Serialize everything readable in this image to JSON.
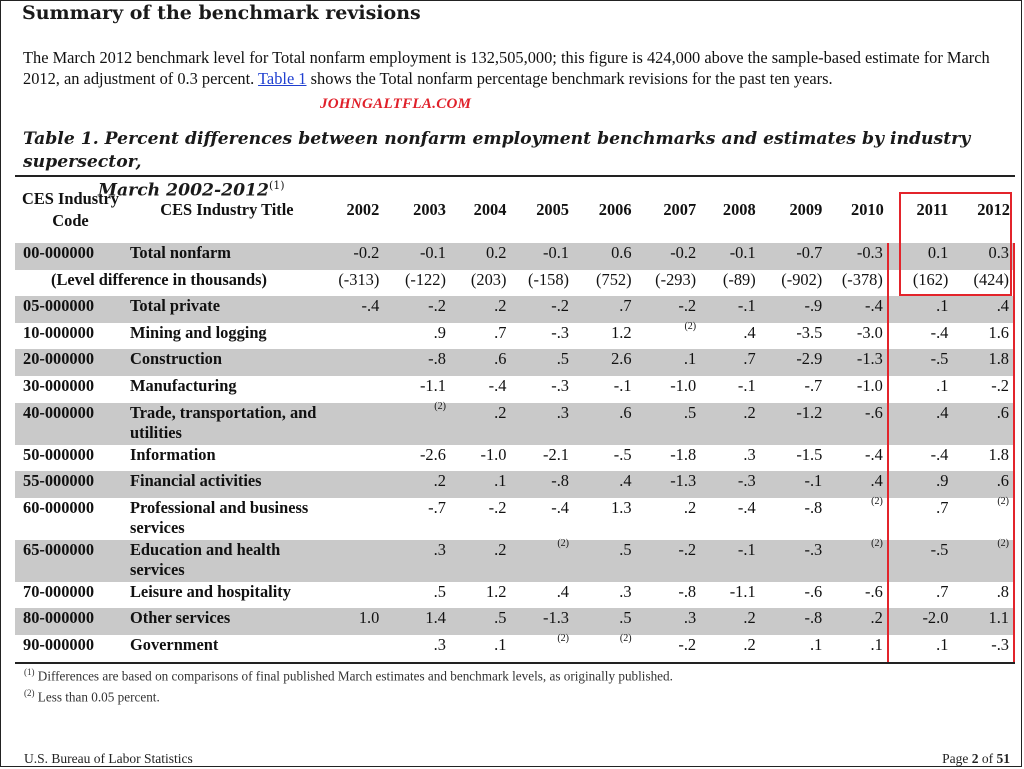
{
  "section_heading": "Summary of the benchmark revisions",
  "intro": {
    "text_before_link": "The March 2012 benchmark level for Total nonfarm employment is 132,505,000; this figure is 424,000 above the sample-based estimate for March 2012, an adjustment of 0.3 percent.",
    "link_text": "Table 1",
    "text_after_link": "shows the Total nonfarm percentage benchmark revisions for the past ten years."
  },
  "watermark": "JOHNGALTFLA.COM",
  "table": {
    "title_line1": "Table 1. Percent differences between nonfarm employment benchmarks and estimates by industry supersector,",
    "title_line2": "March 2002-2012",
    "title_note": "(1)",
    "header_code": "CES Industry Code",
    "header_title": "CES Industry Title",
    "years": [
      "2002",
      "2003",
      "2004",
      "2005",
      "2006",
      "2007",
      "2008",
      "2009",
      "2010",
      "2011",
      "2012"
    ],
    "total_row": {
      "code": "00-000000",
      "title": "Total nonfarm",
      "values": [
        "-0.2",
        "-0.1",
        "0.2",
        "-0.1",
        "0.6",
        "-0.2",
        "-0.1",
        "-0.7",
        "-0.3",
        "0.1",
        "0.3"
      ]
    },
    "level_row": {
      "label": "(Level difference in thousands)",
      "values": [
        "(-313)",
        "(-122)",
        "(203)",
        "(-158)",
        "(752)",
        "(-293)",
        "(-89)",
        "(-902)",
        "(-378)",
        "(162)",
        "(424)"
      ]
    },
    "rows": [
      {
        "code": "05-000000",
        "title": "Total private",
        "values": [
          "-.4",
          "-.2",
          ".2",
          "-.2",
          ".7",
          "-.2",
          "-.1",
          "-.9",
          "-.4",
          ".1",
          ".4"
        ]
      },
      {
        "code": "10-000000",
        "title": "Mining and logging",
        "values": [
          "",
          ".9",
          ".7",
          "-.3",
          "1.2",
          "(2)",
          ".4",
          "-3.5",
          "-3.0",
          "-.4",
          "1.6"
        ]
      },
      {
        "code": "20-000000",
        "title": "Construction",
        "values": [
          "",
          "-.8",
          ".6",
          ".5",
          "2.6",
          ".1",
          ".7",
          "-2.9",
          "-1.3",
          "-.5",
          "1.8"
        ]
      },
      {
        "code": "30-000000",
        "title": "Manufacturing",
        "values": [
          "",
          "-1.1",
          "-.4",
          "-.3",
          "-.1",
          "-1.0",
          "-.1",
          "-.7",
          "-1.0",
          ".1",
          "-.2"
        ]
      },
      {
        "code": "40-000000",
        "title": "Trade, transportation, and utilities",
        "values": [
          "",
          "(2)",
          ".2",
          ".3",
          ".6",
          ".5",
          ".2",
          "-1.2",
          "-.6",
          ".4",
          ".6"
        ]
      },
      {
        "code": "50-000000",
        "title": "Information",
        "values": [
          "",
          "-2.6",
          "-1.0",
          "-2.1",
          "-.5",
          "-1.8",
          ".3",
          "-1.5",
          "-.4",
          "-.4",
          "1.8"
        ]
      },
      {
        "code": "55-000000",
        "title": "Financial activities",
        "values": [
          "",
          ".2",
          ".1",
          "-.8",
          ".4",
          "-1.3",
          "-.3",
          "-.1",
          ".4",
          ".9",
          ".6"
        ]
      },
      {
        "code": "60-000000",
        "title": "Professional and business services",
        "values": [
          "",
          "-.7",
          "-.2",
          "-.4",
          "1.3",
          ".2",
          "-.4",
          "-.8",
          "(2)",
          ".7",
          "(2)"
        ]
      },
      {
        "code": "65-000000",
        "title": "Education and health services",
        "values": [
          "",
          ".3",
          ".2",
          "(2)",
          ".5",
          "-.2",
          "-.1",
          "-.3",
          "(2)",
          "-.5",
          "(2)"
        ]
      },
      {
        "code": "70-000000",
        "title": "Leisure and hospitality",
        "values": [
          "",
          ".5",
          "1.2",
          ".4",
          ".3",
          "-.8",
          "-1.1",
          "-.6",
          "-.6",
          ".7",
          ".8"
        ]
      },
      {
        "code": "80-000000",
        "title": "Other services",
        "values": [
          "1.0",
          "1.4",
          ".5",
          "-1.3",
          ".5",
          ".3",
          ".2",
          "-.8",
          ".2",
          "-2.0",
          "1.1"
        ]
      },
      {
        "code": "90-000000",
        "title": "Government",
        "values": [
          "",
          ".3",
          ".1",
          "(2)",
          "(2)",
          "-.2",
          ".2",
          ".1",
          ".1",
          ".1",
          "-.3"
        ]
      }
    ]
  },
  "footnotes": [
    {
      "mark": "(1)",
      "text": "Differences are based on comparisons of final published March estimates and benchmark levels, as originally published."
    },
    {
      "mark": "(2)",
      "text": "Less than 0.05 percent."
    }
  ],
  "footer": {
    "left": "U.S. Bureau of Labor Statistics",
    "page_word": "Page",
    "page_number": "2",
    "of_word": "of",
    "total_pages": "51"
  },
  "colors": {
    "shade": "#c9c9c9",
    "highlight_box": "#e3242b",
    "watermark": "#e0202a",
    "link": "#1f3fd0"
  }
}
